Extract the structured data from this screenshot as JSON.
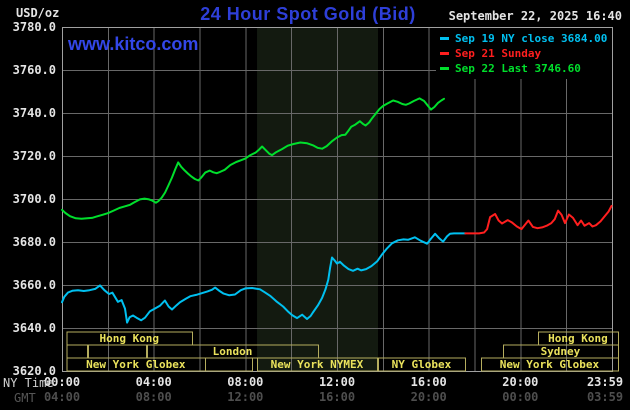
{
  "header": {
    "unit_label": "USD/oz",
    "title": "24 Hour Spot Gold (Bid)",
    "datetime": "September 22, 2025 16:40",
    "watermark": "www.kitco.com"
  },
  "legend": [
    {
      "label": "Sep 19 NY close 3684.00",
      "color": "#00c0f0"
    },
    {
      "label": "Sep 21 Sunday",
      "color": "#ff1f1f"
    },
    {
      "label": "Sep 22 Last 3746.60",
      "color": "#00df2c"
    }
  ],
  "axes": {
    "y_ticks": [
      "3780.0",
      "3760.0",
      "3740.0",
      "3720.0",
      "3700.0",
      "3680.0",
      "3660.0",
      "3640.0",
      "3620.0"
    ],
    "x_row_labels": [
      "NY Time",
      "GMT"
    ],
    "x_ticks": [
      {
        "h": 0,
        "ny": "00:00",
        "gmt": "04:00"
      },
      {
        "h": 4,
        "ny": "04:00",
        "gmt": "08:00"
      },
      {
        "h": 8,
        "ny": "08:00",
        "gmt": "12:00"
      },
      {
        "h": 12,
        "ny": "12:00",
        "gmt": "16:00"
      },
      {
        "h": 16,
        "ny": "16:00",
        "gmt": "20:00"
      },
      {
        "h": 20,
        "ny": "20:00",
        "gmt": "00:00"
      },
      {
        "h": 24,
        "ny": "23:59",
        "gmt": "03:59"
      }
    ]
  },
  "sessions": [
    {
      "id": "hong-kong-early",
      "row": 0,
      "start_h": 0.2,
      "end_h": 5.67,
      "label": "Hong Kong"
    },
    {
      "id": "hong-kong-late",
      "row": 0,
      "start_h": 20.77,
      "end_h": 24.26,
      "label": "Hong Kong"
    },
    {
      "id": "pre-london-1",
      "row": 1,
      "start_h": 0.2,
      "end_h": 1.09,
      "label": ""
    },
    {
      "id": "pre-london-2",
      "row": 1,
      "start_h": 1.13,
      "end_h": 3.67,
      "label": ""
    },
    {
      "id": "london",
      "row": 1,
      "start_h": 3.71,
      "end_h": 11.17,
      "label": "London"
    },
    {
      "id": "sydney",
      "row": 1,
      "start_h": 19.24,
      "end_h": 24.26,
      "label": "Sydney"
    },
    {
      "id": "new-york-globex-early",
      "row": 2,
      "start_h": 0.2,
      "end_h": 6.24,
      "label": "New York Globex"
    },
    {
      "id": "globex-extension",
      "row": 2,
      "start_h": 6.24,
      "end_h": 8.29,
      "label": ""
    },
    {
      "id": "new-york-nymex",
      "row": 2,
      "start_h": 8.51,
      "end_h": 13.74,
      "label": "New York NYMEX"
    },
    {
      "id": "ny-globex",
      "row": 2,
      "start_h": 13.79,
      "end_h": 17.58,
      "label": "NY Globex"
    },
    {
      "id": "new-york-globex-late",
      "row": 2,
      "start_h": 18.28,
      "end_h": 24.26,
      "label": "New York Globex"
    }
  ],
  "colors": {
    "background": "#000000",
    "grid": "#686868",
    "plot_border": "#a0a0a0",
    "shaded_band": "#131a10",
    "session_border": "#b5ad5e",
    "session_text": "#eae25c",
    "title_blue": "#2e3fd8",
    "watermark_blue": "#3347e8",
    "axis_text": "#e4e4e4",
    "gmt_text": "#4e4e4e"
  },
  "chart_data": {
    "type": "line",
    "title": "24 Hour Spot Gold (Bid)",
    "x_unit": "hours (NY Time)",
    "x_range": [
      0,
      24
    ],
    "y_range": [
      3620,
      3780
    ],
    "y_tick_step": 20,
    "x_grid_step_hours": 2,
    "grid": true,
    "legend_position": "top-right",
    "shaded_band": {
      "start_h": 8.51,
      "end_h": 13.79,
      "note": "NYMEX session highlight"
    },
    "series": [
      {
        "name": "Sep 19 NY close 3684.00",
        "color": "#00c0f0",
        "points": [
          [
            0,
            3652
          ],
          [
            0.1,
            3654.5
          ],
          [
            0.26,
            3656.5
          ],
          [
            0.45,
            3657.3
          ],
          [
            0.7,
            3657.6
          ],
          [
            0.95,
            3657.2
          ],
          [
            1.2,
            3657.6
          ],
          [
            1.45,
            3658.2
          ],
          [
            1.66,
            3659.8
          ],
          [
            1.85,
            3657.6
          ],
          [
            2.05,
            3655.8
          ],
          [
            2.2,
            3656.4
          ],
          [
            2.44,
            3652.2
          ],
          [
            2.6,
            3653
          ],
          [
            2.75,
            3649
          ],
          [
            2.84,
            3642.5
          ],
          [
            2.95,
            3645
          ],
          [
            3.1,
            3645.8
          ],
          [
            3.25,
            3644.8
          ],
          [
            3.45,
            3643.6
          ],
          [
            3.62,
            3644.8
          ],
          [
            3.84,
            3647.8
          ],
          [
            4.05,
            3649
          ],
          [
            4.28,
            3650.4
          ],
          [
            4.49,
            3652.8
          ],
          [
            4.65,
            3650
          ],
          [
            4.8,
            3648.6
          ],
          [
            5.0,
            3650.6
          ],
          [
            5.15,
            3652
          ],
          [
            5.4,
            3653.6
          ],
          [
            5.6,
            3654.8
          ],
          [
            5.85,
            3655.4
          ],
          [
            6.1,
            3656.2
          ],
          [
            6.35,
            3657
          ],
          [
            6.55,
            3657.8
          ],
          [
            6.68,
            3658.8
          ],
          [
            6.85,
            3657.4
          ],
          [
            7.05,
            3656
          ],
          [
            7.3,
            3655.2
          ],
          [
            7.55,
            3655.6
          ],
          [
            7.8,
            3657.6
          ],
          [
            8.0,
            3658.4
          ],
          [
            8.3,
            3658.6
          ],
          [
            8.64,
            3658
          ],
          [
            8.85,
            3656.6
          ],
          [
            9.08,
            3655
          ],
          [
            9.35,
            3652.4
          ],
          [
            9.65,
            3650
          ],
          [
            9.85,
            3647.8
          ],
          [
            10.04,
            3646
          ],
          [
            10.26,
            3644.6
          ],
          [
            10.48,
            3646.2
          ],
          [
            10.69,
            3644.2
          ],
          [
            10.85,
            3645.6
          ],
          [
            10.95,
            3647.2
          ],
          [
            11.17,
            3650.6
          ],
          [
            11.35,
            3654
          ],
          [
            11.5,
            3658
          ],
          [
            11.62,
            3662.5
          ],
          [
            11.7,
            3668
          ],
          [
            11.78,
            3672.8
          ],
          [
            11.9,
            3671.4
          ],
          [
            12.0,
            3670
          ],
          [
            12.13,
            3670.8
          ],
          [
            12.3,
            3669
          ],
          [
            12.5,
            3667.4
          ],
          [
            12.7,
            3666.6
          ],
          [
            12.9,
            3667.6
          ],
          [
            13.05,
            3666.8
          ],
          [
            13.27,
            3667.4
          ],
          [
            13.5,
            3668.8
          ],
          [
            13.75,
            3671
          ],
          [
            13.95,
            3674
          ],
          [
            14.18,
            3677
          ],
          [
            14.4,
            3679.4
          ],
          [
            14.66,
            3680.8
          ],
          [
            14.9,
            3681.2
          ],
          [
            15.1,
            3681
          ],
          [
            15.4,
            3682.2
          ],
          [
            15.65,
            3680.6
          ],
          [
            15.93,
            3679.2
          ],
          [
            16.1,
            3681.6
          ],
          [
            16.28,
            3683.8
          ],
          [
            16.45,
            3681.8
          ],
          [
            16.63,
            3680.2
          ],
          [
            16.8,
            3682.6
          ],
          [
            16.93,
            3683.8
          ],
          [
            17.1,
            3684
          ],
          [
            17.6,
            3684
          ]
        ]
      },
      {
        "name": "Sep 21 Sunday",
        "color": "#ff1f1f",
        "points": [
          [
            17.6,
            3684
          ],
          [
            17.9,
            3684
          ],
          [
            18.2,
            3684
          ],
          [
            18.42,
            3684.4
          ],
          [
            18.55,
            3686
          ],
          [
            18.68,
            3691.6
          ],
          [
            18.9,
            3693
          ],
          [
            19.05,
            3690
          ],
          [
            19.2,
            3688.6
          ],
          [
            19.45,
            3690.2
          ],
          [
            19.62,
            3689.2
          ],
          [
            19.85,
            3687.2
          ],
          [
            20.05,
            3686
          ],
          [
            20.35,
            3690
          ],
          [
            20.55,
            3687
          ],
          [
            20.75,
            3686.4
          ],
          [
            20.95,
            3686.8
          ],
          [
            21.15,
            3687.6
          ],
          [
            21.35,
            3688.8
          ],
          [
            21.5,
            3690.6
          ],
          [
            21.65,
            3694.6
          ],
          [
            21.8,
            3692.6
          ],
          [
            21.95,
            3688.8
          ],
          [
            22.12,
            3692.8
          ],
          [
            22.3,
            3691.2
          ],
          [
            22.5,
            3687.8
          ],
          [
            22.65,
            3690
          ],
          [
            22.8,
            3687.6
          ],
          [
            23.0,
            3688.8
          ],
          [
            23.15,
            3687.2
          ],
          [
            23.3,
            3687.8
          ],
          [
            23.5,
            3689.6
          ],
          [
            23.7,
            3692.2
          ],
          [
            23.85,
            3694.2
          ],
          [
            23.98,
            3696.8
          ]
        ]
      },
      {
        "name": "Sep 22 Last 3746.60",
        "color": "#00df2c",
        "points": [
          [
            0,
            3695
          ],
          [
            0.15,
            3693.5
          ],
          [
            0.35,
            3692
          ],
          [
            0.6,
            3691
          ],
          [
            0.85,
            3690.8
          ],
          [
            1.1,
            3691
          ],
          [
            1.31,
            3691.2
          ],
          [
            1.5,
            3691.8
          ],
          [
            1.75,
            3692.6
          ],
          [
            2.0,
            3693.4
          ],
          [
            2.25,
            3694.6
          ],
          [
            2.5,
            3695.8
          ],
          [
            2.75,
            3696.6
          ],
          [
            2.97,
            3697.3
          ],
          [
            3.15,
            3698.4
          ],
          [
            3.4,
            3699.8
          ],
          [
            3.6,
            3700.2
          ],
          [
            3.8,
            3699.8
          ],
          [
            3.95,
            3699.2
          ],
          [
            4.1,
            3698.3
          ],
          [
            4.2,
            3699
          ],
          [
            4.35,
            3700.6
          ],
          [
            4.5,
            3703
          ],
          [
            4.65,
            3706.5
          ],
          [
            4.8,
            3710
          ],
          [
            4.95,
            3714
          ],
          [
            5.07,
            3717
          ],
          [
            5.2,
            3715
          ],
          [
            5.35,
            3713.3
          ],
          [
            5.5,
            3711.8
          ],
          [
            5.65,
            3710.4
          ],
          [
            5.8,
            3709.3
          ],
          [
            5.95,
            3708.6
          ],
          [
            6.1,
            3710.3
          ],
          [
            6.25,
            3712.3
          ],
          [
            6.45,
            3713.2
          ],
          [
            6.6,
            3712.4
          ],
          [
            6.75,
            3712
          ],
          [
            6.9,
            3712.6
          ],
          [
            7.1,
            3713.6
          ],
          [
            7.35,
            3715.8
          ],
          [
            7.6,
            3717.2
          ],
          [
            7.8,
            3718
          ],
          [
            8.0,
            3718.8
          ],
          [
            8.2,
            3720.3
          ],
          [
            8.45,
            3721.6
          ],
          [
            8.6,
            3723
          ],
          [
            8.73,
            3724.4
          ],
          [
            8.9,
            3722.6
          ],
          [
            9.05,
            3721
          ],
          [
            9.17,
            3720.4
          ],
          [
            9.35,
            3721.8
          ],
          [
            9.6,
            3723.2
          ],
          [
            9.85,
            3724.8
          ],
          [
            10.1,
            3725.6
          ],
          [
            10.4,
            3726.3
          ],
          [
            10.7,
            3725.9
          ],
          [
            10.95,
            3725
          ],
          [
            11.15,
            3723.8
          ],
          [
            11.35,
            3723.4
          ],
          [
            11.55,
            3724.6
          ],
          [
            11.8,
            3727
          ],
          [
            12.0,
            3728.6
          ],
          [
            12.2,
            3729.7
          ],
          [
            12.36,
            3729.9
          ],
          [
            12.5,
            3731.8
          ],
          [
            12.62,
            3733.6
          ],
          [
            12.8,
            3734.6
          ],
          [
            13.0,
            3736.2
          ],
          [
            13.15,
            3734.8
          ],
          [
            13.25,
            3734.2
          ],
          [
            13.4,
            3735.6
          ],
          [
            13.55,
            3737.8
          ],
          [
            13.7,
            3739.8
          ],
          [
            13.85,
            3741.8
          ],
          [
            14.0,
            3743.2
          ],
          [
            14.2,
            3744.4
          ],
          [
            14.45,
            3745.8
          ],
          [
            14.65,
            3745.2
          ],
          [
            14.85,
            3744.2
          ],
          [
            15.0,
            3743.8
          ],
          [
            15.15,
            3744.4
          ],
          [
            15.35,
            3745.6
          ],
          [
            15.6,
            3746.8
          ],
          [
            15.8,
            3745.6
          ],
          [
            15.95,
            3743.6
          ],
          [
            16.1,
            3741.6
          ],
          [
            16.25,
            3742.8
          ],
          [
            16.4,
            3744.6
          ],
          [
            16.55,
            3745.8
          ],
          [
            16.67,
            3746.6
          ]
        ]
      }
    ]
  }
}
